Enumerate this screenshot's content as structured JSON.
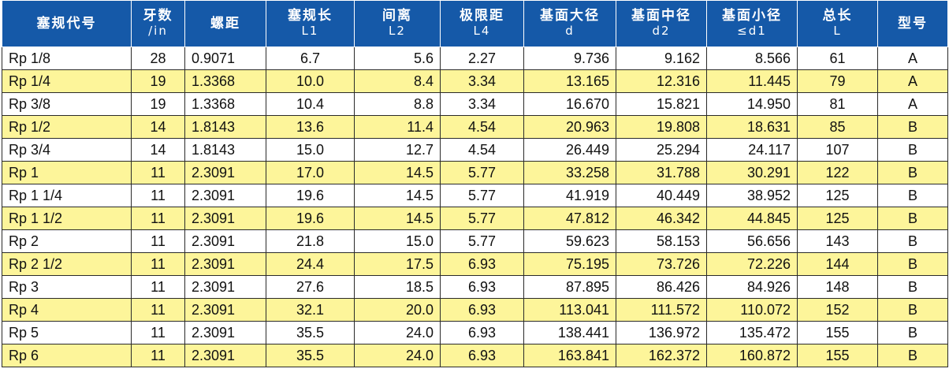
{
  "colors": {
    "header_bg": "#1559a8",
    "header_text": "#ffffff",
    "row_alt": "#fdf59a",
    "row_normal": "#ffffff",
    "grid": "#2a2a2a"
  },
  "table": {
    "headers": [
      {
        "l1": "塞规代号",
        "l2": ""
      },
      {
        "l1": "牙数",
        "l2": "/in"
      },
      {
        "l1": "螺距",
        "l2": ""
      },
      {
        "l1": "塞规长",
        "l2": "L1"
      },
      {
        "l1": "间离",
        "l2": "L2"
      },
      {
        "l1": "极限距",
        "l2": "L4"
      },
      {
        "l1": "基面大径",
        "l2": "d"
      },
      {
        "l1": "基面中径",
        "l2": "d2"
      },
      {
        "l1": "基面小径",
        "l2": "≤d1"
      },
      {
        "l1": "总长",
        "l2": "L"
      },
      {
        "l1": "型号",
        "l2": ""
      }
    ],
    "rows": [
      [
        "Rp 1/8",
        "28",
        "0.9071",
        "6.7",
        "5.6",
        "2.27",
        "9.736",
        "9.162",
        "8.566",
        "61",
        "A"
      ],
      [
        "Rp 1/4",
        "19",
        "1.3368",
        "10.0",
        "8.4",
        "3.34",
        "13.165",
        "12.316",
        "11.445",
        "79",
        "A"
      ],
      [
        "Rp 3/8",
        "19",
        "1.3368",
        "10.4",
        "8.8",
        "3.34",
        "16.670",
        "15.821",
        "14.950",
        "81",
        "A"
      ],
      [
        "Rp 1/2",
        "14",
        "1.8143",
        "13.6",
        "11.4",
        "4.54",
        "20.963",
        "19.808",
        "18.631",
        "85",
        "B"
      ],
      [
        "Rp 3/4",
        "14",
        "1.8143",
        "15.0",
        "12.7",
        "4.54",
        "26.449",
        "25.294",
        "24.117",
        "107",
        "B"
      ],
      [
        "Rp 1",
        "11",
        "2.3091",
        "17.0",
        "14.5",
        "5.77",
        "33.258",
        "31.788",
        "30.291",
        "122",
        "B"
      ],
      [
        "Rp 1 1/4",
        "11",
        "2.3091",
        "19.6",
        "14.5",
        "5.77",
        "41.919",
        "40.449",
        "38.952",
        "125",
        "B"
      ],
      [
        "Rp 1 1/2",
        "11",
        "2.3091",
        "19.6",
        "14.5",
        "5.77",
        "47.812",
        "46.342",
        "44.845",
        "125",
        "B"
      ],
      [
        "Rp 2",
        "11",
        "2.3091",
        "21.8",
        "15.0",
        "5.77",
        "59.623",
        "58.153",
        "56.656",
        "143",
        "B"
      ],
      [
        "Rp 2 1/2",
        "11",
        "2.3091",
        "24.4",
        "17.5",
        "6.93",
        "75.195",
        "73.726",
        "72.226",
        "144",
        "B"
      ],
      [
        "Rp 3",
        "11",
        "2.3091",
        "27.6",
        "18.5",
        "6.93",
        "87.895",
        "86.426",
        "84.926",
        "148",
        "B"
      ],
      [
        "Rp 4",
        "11",
        "2.3091",
        "32.1",
        "20.0",
        "6.93",
        "113.041",
        "111.572",
        "110.072",
        "152",
        "B"
      ],
      [
        "Rp 5",
        "11",
        "2.3091",
        "35.5",
        "24.0",
        "6.93",
        "138.441",
        "136.972",
        "135.472",
        "155",
        "B"
      ],
      [
        "Rp 6",
        "11",
        "2.3091",
        "35.5",
        "24.0",
        "6.93",
        "163.841",
        "162.372",
        "160.872",
        "155",
        "B"
      ]
    ]
  }
}
